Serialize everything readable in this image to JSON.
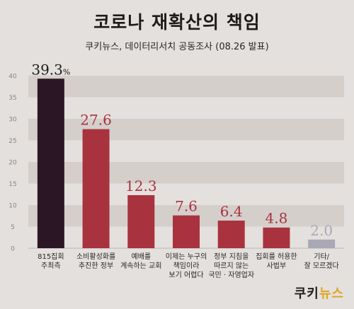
{
  "title": "코로나 재확산의 책임",
  "subtitle": "쿠키뉴스, 데이터리서치 공동조사 (08.26 발표)",
  "brand": {
    "part1": "쿠키",
    "part2": "뉴스"
  },
  "colors": {
    "background": "#e4e0dd",
    "band": "#d5cfcc",
    "top_bar": "#2b1626",
    "bar": "#a8333f",
    "last_bar": "#a9a9b5",
    "label_red": "#a8333f",
    "label_dark": "#1e1a1b",
    "label_gray": "#a9a9b5",
    "brand_accent": "#e0a526"
  },
  "chart_data": {
    "type": "bar",
    "categories": [
      [
        "815집회",
        "주최측"
      ],
      [
        "소비활성화를",
        "추진한 정부"
      ],
      [
        "예배를",
        "계속하는 교회"
      ],
      [
        "이제는 누구의",
        "책임이라",
        "보기 어렵다"
      ],
      [
        "정부 지침을",
        "따르지 않는",
        "국민 · 자영업자"
      ],
      [
        "집회를 허용한",
        "사법부"
      ],
      [
        "기타/",
        "잘 모르겠다"
      ]
    ],
    "values": [
      39.3,
      27.6,
      12.3,
      7.6,
      6.4,
      4.8,
      2.0
    ],
    "value_labels": [
      "39.3",
      "27.6",
      "12.3",
      "7.6",
      "6.4",
      "4.8",
      "2.0"
    ],
    "value_unit": "%",
    "yticks": [
      0,
      5,
      10,
      15,
      20,
      25,
      30,
      35,
      40
    ],
    "ylim": [
      0,
      40
    ],
    "xlabel": "",
    "ylabel": "",
    "grid": "alternating bands"
  }
}
